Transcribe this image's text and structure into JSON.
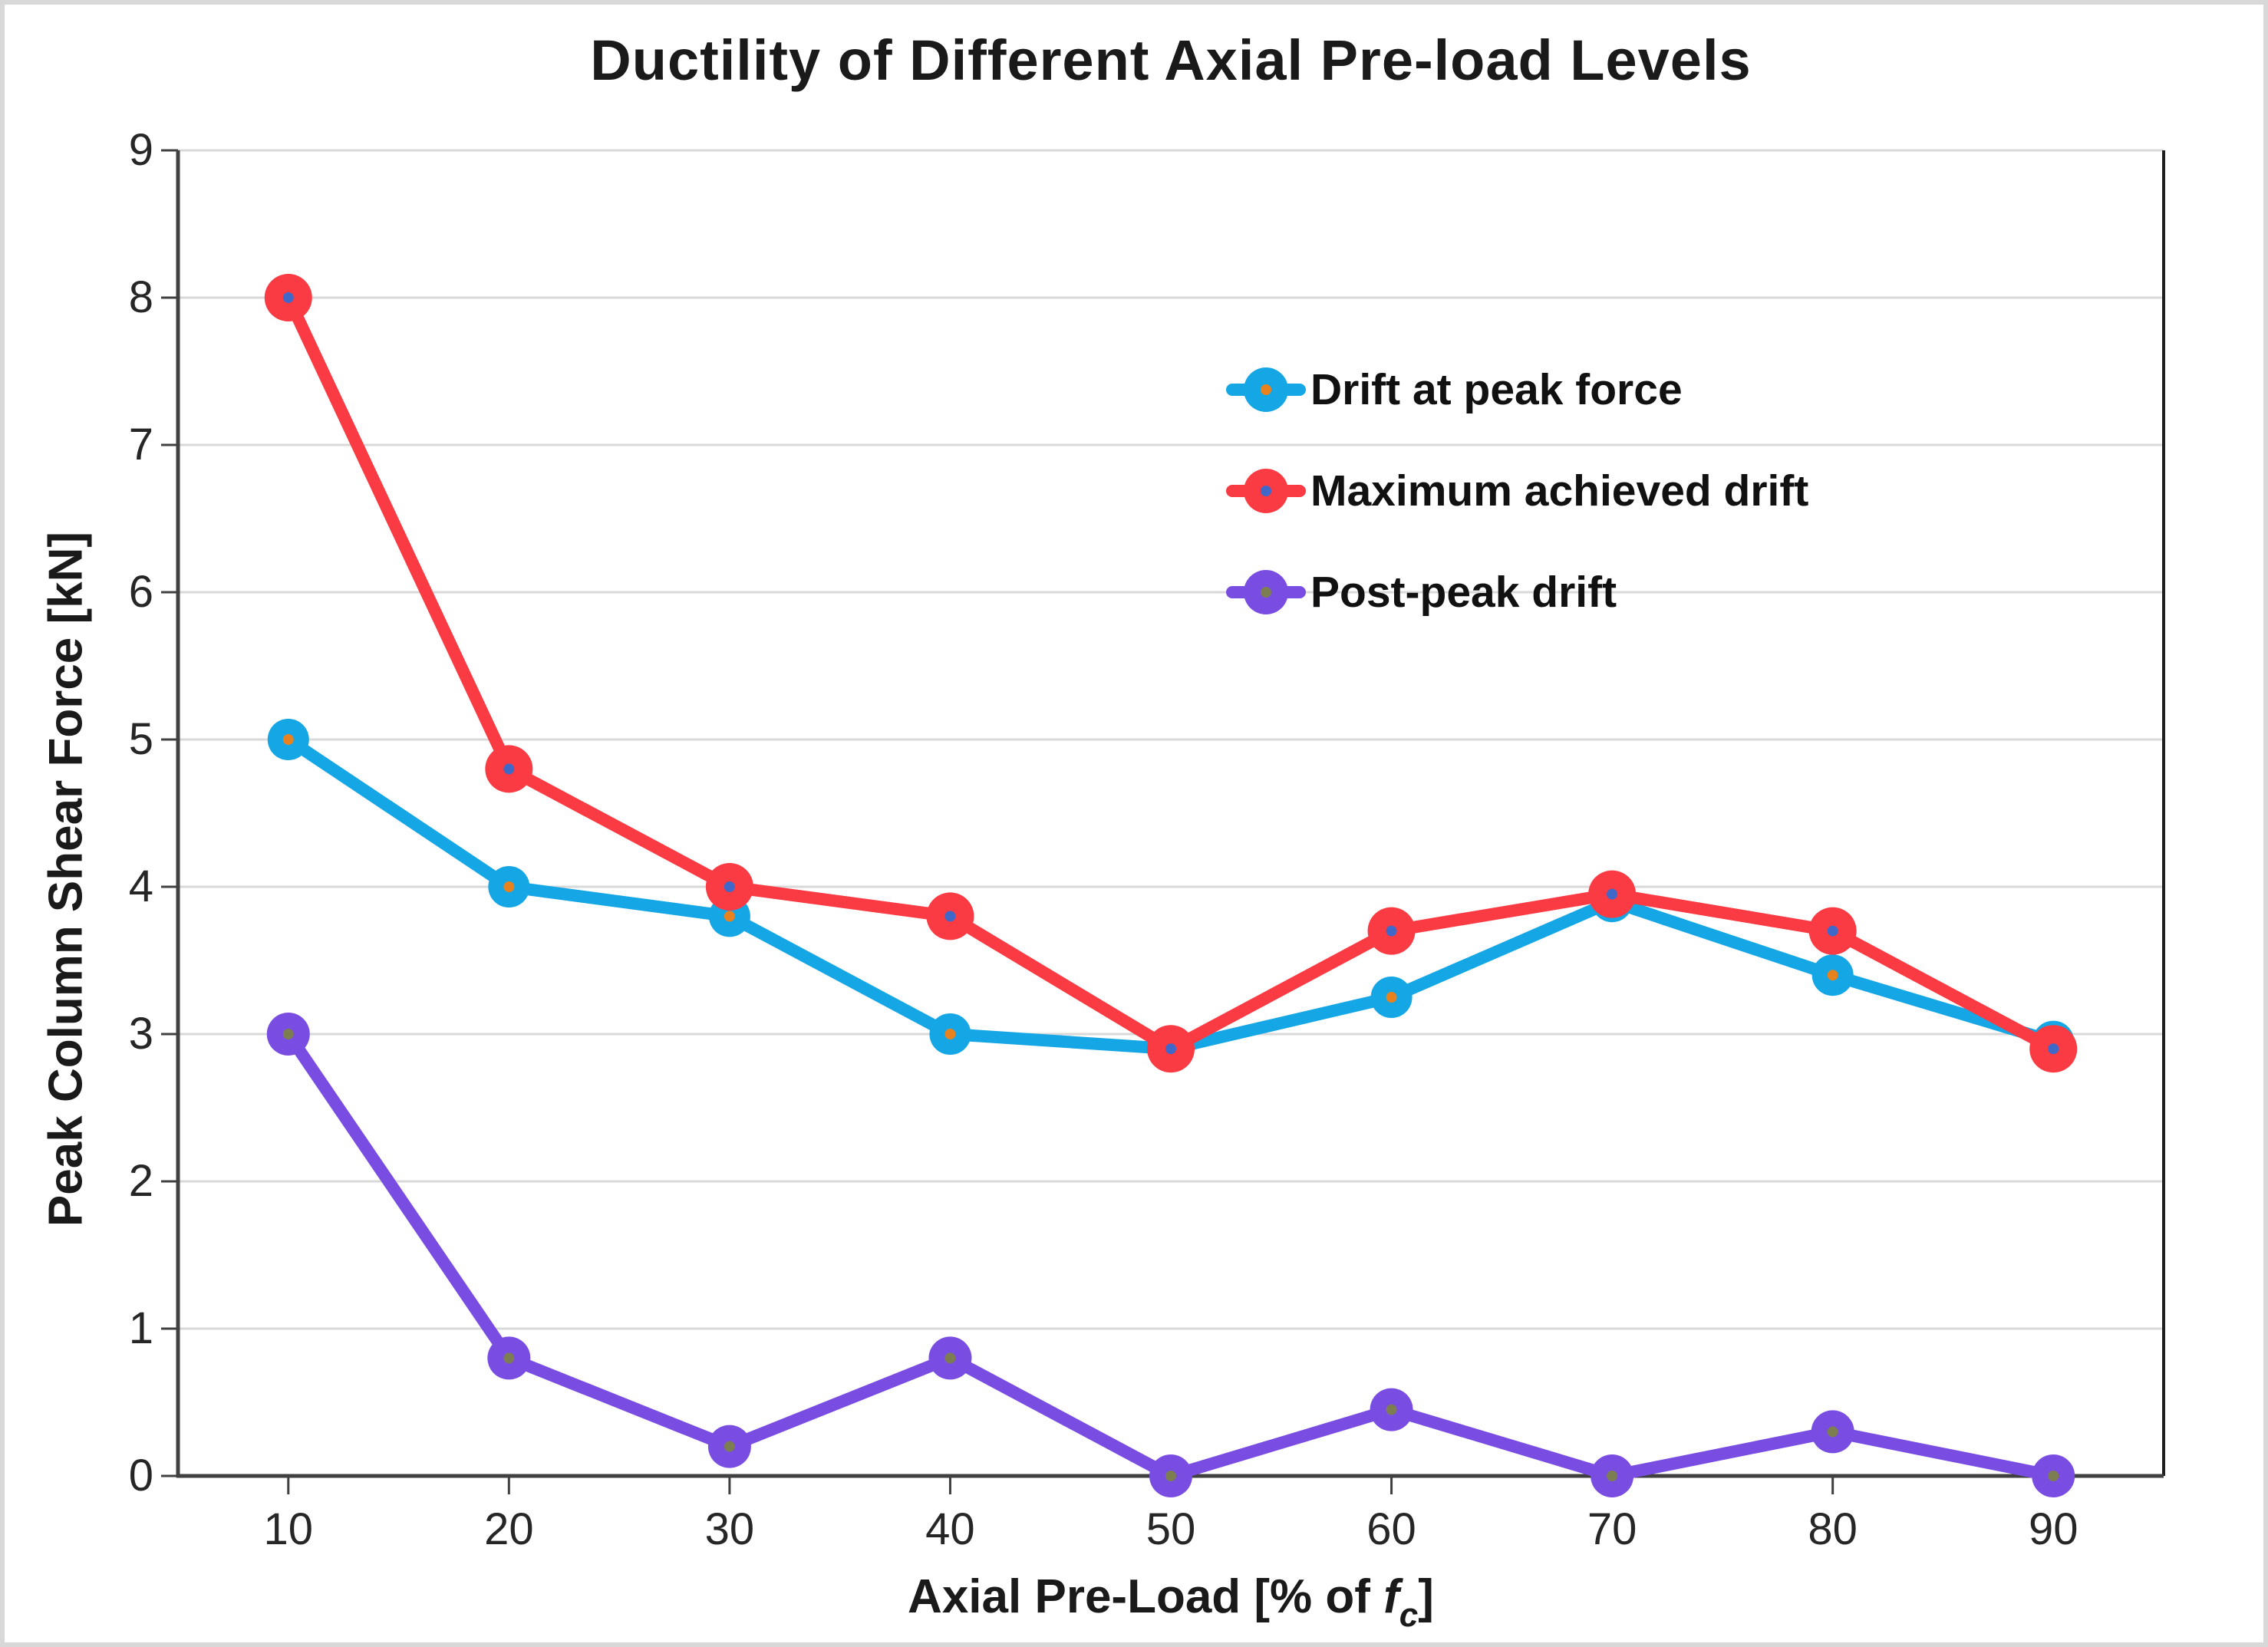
{
  "chart_data": {
    "type": "line",
    "title": "Ductility of Different Axial Pre-load Levels",
    "ylabel": "Peak Column Shear Force [kN]",
    "xlabel": {
      "prefix": "Axial Pre-Load [% of ",
      "f": "f",
      "sub": "c",
      "suffix": "]"
    },
    "x": [
      10,
      20,
      30,
      40,
      50,
      60,
      70,
      80,
      90
    ],
    "x_tick_labels": [
      "10",
      "20",
      "30",
      "40",
      "50",
      "60",
      "70",
      "80",
      "90"
    ],
    "y_ticks": [
      0,
      1,
      2,
      3,
      4,
      5,
      6,
      7,
      8,
      9
    ],
    "y_tick_labels": [
      "0",
      "1",
      "2",
      "3",
      "4",
      "5",
      "6",
      "7",
      "8",
      "9"
    ],
    "xlim": [
      5,
      95
    ],
    "ylim": [
      0,
      9
    ],
    "grid": "horizontal",
    "legend_position": "inside-upper-right",
    "series": [
      {
        "name": "Drift at peak force",
        "color": "#15A6E5",
        "marker_dot_color": "#E8821E",
        "values": [
          5.0,
          4.0,
          3.8,
          3.0,
          2.9,
          3.25,
          3.9,
          3.4,
          2.95
        ]
      },
      {
        "name": "Maximum achieved drift",
        "color": "#FA3B43",
        "marker_dot_color": "#4068C8",
        "values": [
          8.0,
          4.8,
          4.0,
          3.8,
          2.9,
          3.7,
          3.95,
          3.7,
          2.9
        ]
      },
      {
        "name": "Post-peak drift",
        "color": "#7A4DE2",
        "marker_dot_color": "#7D7D52",
        "values": [
          3.0,
          0.8,
          0.2,
          0.8,
          0.0,
          0.45,
          0.0,
          0.3,
          0.0
        ]
      }
    ],
    "draw_order": [
      0,
      2,
      1
    ],
    "palette": {
      "grid_color": "#D9D9D9",
      "axis_color": "#404040",
      "right_border_color": "#1f1f1f",
      "tick_label_color": "#262626",
      "title_color": "#1a1a1a",
      "figure_border_color": "#d8d8d8",
      "background": "#ffffff"
    }
  }
}
